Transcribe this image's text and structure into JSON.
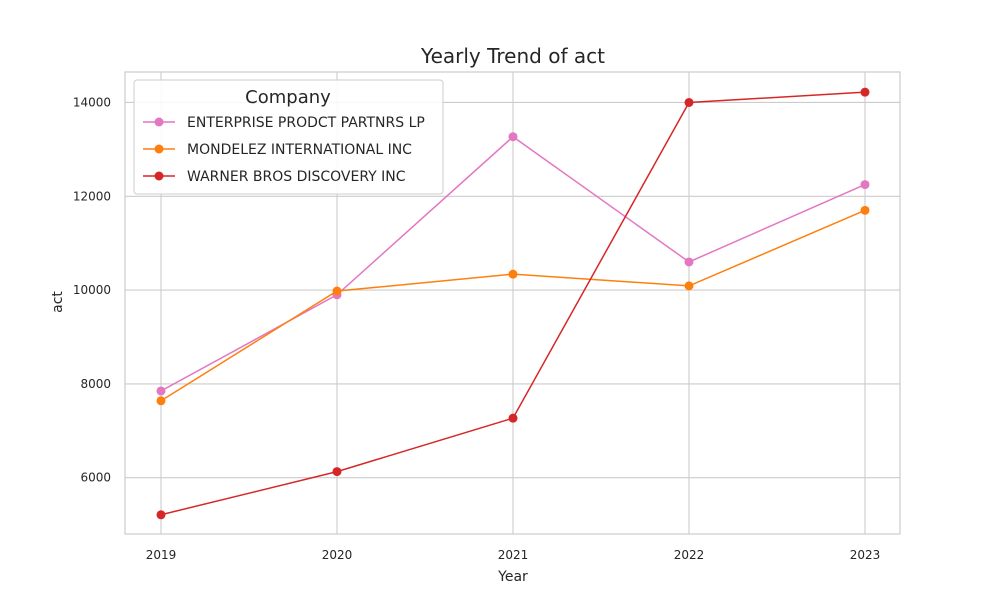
{
  "chart_data": {
    "type": "line",
    "title": "Yearly Trend of act",
    "xlabel": "Year",
    "ylabel": "act",
    "categories": [
      "2019",
      "2020",
      "2021",
      "2022",
      "2023"
    ],
    "y_ticks": [
      6000,
      8000,
      10000,
      12000,
      14000
    ],
    "ylim": [
      4800,
      14650
    ],
    "grid": true,
    "legend": {
      "title": "Company",
      "position": "top-left"
    },
    "series": [
      {
        "name": "ENTERPRISE PRODCT PARTNRS LP",
        "color": "#e377c2",
        "values": [
          7850,
          9900,
          13270,
          10600,
          12250
        ]
      },
      {
        "name": "MONDELEZ INTERNATIONAL INC",
        "color": "#ff7f0e",
        "values": [
          7640,
          9980,
          10340,
          10090,
          11700
        ]
      },
      {
        "name": "WARNER BROS DISCOVERY INC",
        "color": "#d62728",
        "values": [
          5210,
          6130,
          7270,
          14000,
          14220
        ]
      }
    ]
  }
}
